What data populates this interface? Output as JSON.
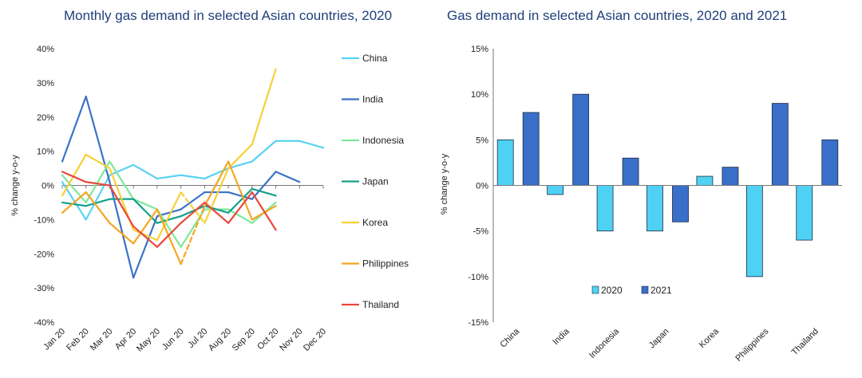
{
  "chart_data": [
    {
      "type": "line",
      "title": "Monthly gas demand in selected Asian countries, 2020",
      "xlabel": "",
      "ylabel": "% change y-o-y",
      "categories": [
        "Jan 20",
        "Feb 20",
        "Mar 20",
        "Apr 20",
        "May 20",
        "Jun 20",
        "Jul 20",
        "Aug 20",
        "Sep 20",
        "Oct 20",
        "Nov 20",
        "Dec 20"
      ],
      "ylim": [
        -40,
        40
      ],
      "yticks": [
        "40%",
        "30%",
        "20%",
        "10%",
        "0%",
        "-10%",
        "-20%",
        "-30%",
        "-40%"
      ],
      "legend_position": "right",
      "series": [
        {
          "name": "China",
          "color": "#5ad2f4",
          "values": [
            1,
            -10,
            3,
            6,
            2,
            3,
            2,
            5,
            7,
            13,
            13,
            11
          ]
        },
        {
          "name": "India",
          "color": "#3a73c8",
          "values": [
            7,
            26,
            1,
            -27,
            -9,
            -7,
            -2,
            -2,
            -4,
            4,
            1,
            null
          ]
        },
        {
          "name": "Indonesia",
          "color": "#7ee89a",
          "values": [
            3,
            -5,
            7,
            -4,
            -7,
            -18,
            -7,
            -7,
            -11,
            -5,
            null,
            null
          ]
        },
        {
          "name": "Japan",
          "color": "#14a08c",
          "values": [
            -5,
            -6,
            -4,
            -4,
            -11,
            -9,
            -6,
            -8,
            -1,
            -3,
            null,
            null
          ]
        },
        {
          "name": "Korea",
          "color": "#f7d038",
          "values": [
            -3,
            9,
            5,
            -13,
            -16,
            -2,
            -11,
            5,
            12,
            34,
            null,
            null
          ],
          "dashed_segment": [
            5,
            6
          ]
        },
        {
          "name": "Philippines",
          "color": "#f5a623",
          "values": [
            -8,
            -2,
            -11,
            -17,
            -7,
            -23,
            -6,
            7,
            -10,
            -6,
            null,
            null
          ],
          "dashed_segment": [
            5,
            6
          ]
        },
        {
          "name": "Thailand",
          "color": "#e8483a",
          "values": [
            4,
            1,
            0,
            -12,
            -18,
            -11,
            -5,
            -11,
            -2,
            -13,
            null,
            null
          ]
        }
      ]
    },
    {
      "type": "bar",
      "title": "Gas demand in selected Asian countries, 2020 and 2021",
      "xlabel": "",
      "ylabel": "% change y-o-y",
      "categories": [
        "China",
        "India",
        "Indonesia",
        "Japan",
        "Korea",
        "Philippines",
        "Thailand"
      ],
      "ylim": [
        -15,
        15
      ],
      "yticks": [
        "15%",
        "10%",
        "5%",
        "0%",
        "-5%",
        "-10%",
        "-15%"
      ],
      "legend_position": "bottom-left",
      "series": [
        {
          "name": "2020",
          "color": "#4fd1f4",
          "values": [
            5,
            -1,
            -5,
            -5,
            1,
            -10,
            -6
          ]
        },
        {
          "name": "2021",
          "color": "#3a6fc9",
          "values": [
            8,
            10,
            3,
            -4,
            2,
            9,
            5
          ]
        }
      ]
    }
  ]
}
